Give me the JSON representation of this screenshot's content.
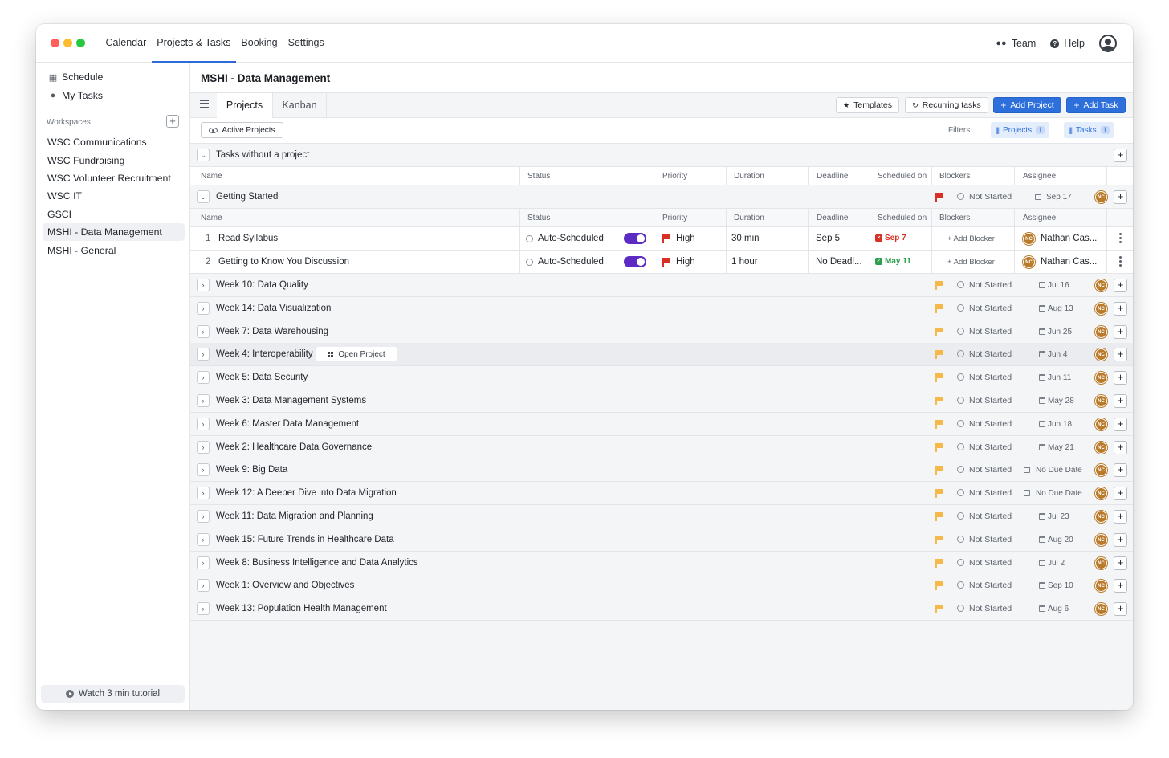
{
  "topnav": {
    "items": [
      "Calendar",
      "Projects & Tasks",
      "Booking",
      "Settings"
    ],
    "active": "Projects & Tasks"
  },
  "topright": {
    "team": "Team",
    "help": "Help"
  },
  "sidebar": {
    "schedule": "Schedule",
    "my_tasks": "My Tasks",
    "workspaces_label": "Workspaces",
    "workspaces": [
      "WSC Communications",
      "WSC Fundraising",
      "WSC Volunteer Recruitment",
      "WSC IT",
      "GSCI",
      "MSHI - Data Management",
      "MSHI - General"
    ],
    "active_workspace": "MSHI - Data Management",
    "tutorial": "Watch 3 min tutorial"
  },
  "page": {
    "title": "MSHI - Data Management"
  },
  "tabs": [
    "Projects",
    "Kanban"
  ],
  "toolbar": {
    "templates": "Templates",
    "recurring": "Recurring tasks",
    "add_project": "Add Project",
    "add_task": "Add Task"
  },
  "filters": {
    "active_projects": "Active Projects",
    "label": "Filters:",
    "projects": "Projects",
    "projects_count": "1",
    "tasks": "Tasks",
    "tasks_count": "1"
  },
  "no_project": "Tasks without a project",
  "columns": [
    "Name",
    "Status",
    "Priority",
    "Duration",
    "Deadline",
    "Scheduled on",
    "Blockers",
    "Assignee"
  ],
  "getting_started": {
    "name": "Getting Started",
    "status": "Not Started",
    "date": "Sep 17",
    "flag_color": "#d93025",
    "tasks": [
      {
        "num": "1",
        "name": "Read Syllabus",
        "status": "Auto-Scheduled",
        "priority": "High",
        "duration": "30 min",
        "deadline": "Sep 5",
        "scheduled": "Sep 7",
        "scheduled_color": "#d93025",
        "blocker": "+ Add Blocker",
        "assignee": "Nathan Cas..."
      },
      {
        "num": "2",
        "name": "Getting to Know You Discussion",
        "status": "Auto-Scheduled",
        "priority": "High",
        "duration": "1 hour",
        "deadline": "No Deadl...",
        "scheduled": "May 11",
        "scheduled_color": "#2e9e4f",
        "blocker": "+ Add Blocker",
        "assignee": "Nathan Cas..."
      }
    ]
  },
  "open_project": "Open Project",
  "avatar_initials": "NC",
  "projects": [
    {
      "name": "Week 10: Data Quality",
      "status": "Not Started",
      "date": "Jul 16"
    },
    {
      "name": "Week 14: Data Visualization",
      "status": "Not Started",
      "date": "Aug 13"
    },
    {
      "name": "Week 7: Data Warehousing",
      "status": "Not Started",
      "date": "Jun 25"
    },
    {
      "name": "Week 4: Interoperability",
      "status": "Not Started",
      "date": "Jun 4"
    },
    {
      "name": "Week 5: Data Security",
      "status": "Not Started",
      "date": "Jun 11"
    },
    {
      "name": "Week 3: Data Management Systems",
      "status": "Not Started",
      "date": "May 28"
    },
    {
      "name": "Week 6: Master Data Management",
      "status": "Not Started",
      "date": "Jun 18"
    },
    {
      "name": "Week 2: Healthcare Data Governance",
      "status": "Not Started",
      "date": "May 21"
    },
    {
      "name": "Week 9: Big Data",
      "status": "Not Started",
      "date": "No Due Date"
    },
    {
      "name": "Week 12: A Deeper Dive into Data Migration",
      "status": "Not Started",
      "date": "No Due Date"
    },
    {
      "name": "Week 11: Data Migration and Planning",
      "status": "Not Started",
      "date": "Jul 23"
    },
    {
      "name": "Week 15: Future Trends in Healthcare Data",
      "status": "Not Started",
      "date": "Aug 20"
    },
    {
      "name": "Week 8: Business Intelligence and Data Analytics",
      "status": "Not Started",
      "date": "Jul 2"
    },
    {
      "name": "Week 1: Overview and Objectives",
      "status": "Not Started",
      "date": "Sep 10"
    },
    {
      "name": "Week 13: Population Health Management",
      "status": "Not Started",
      "date": "Aug 6"
    }
  ],
  "colors": {
    "accent": "#2d6fdb",
    "flag_medium": "#f5b94a",
    "flag_high": "#d93025",
    "avatar": "#b97a2a",
    "toggle": "#5b2bc4"
  }
}
